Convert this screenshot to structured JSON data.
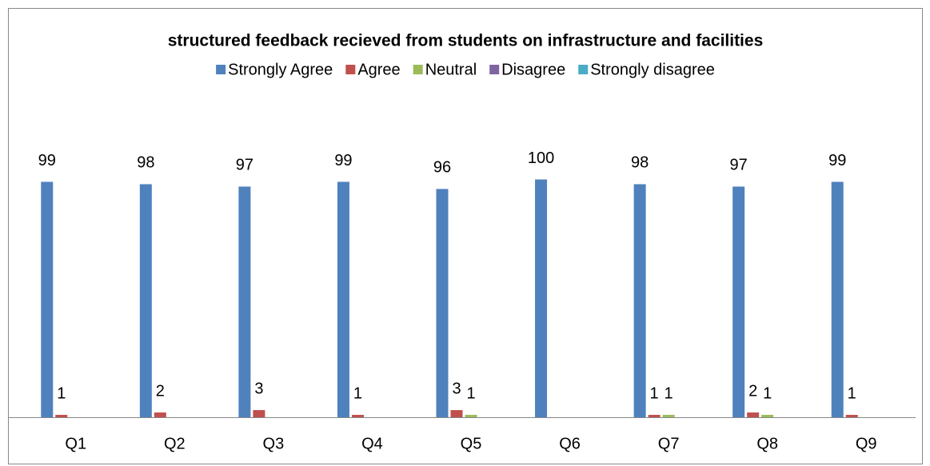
{
  "chart_data": {
    "type": "bar",
    "title": "structured feedback recieved from students on infrastructure and facilities",
    "categories": [
      "Q1",
      "Q2",
      "Q3",
      "Q4",
      "Q5",
      "Q6",
      "Q7",
      "Q8",
      "Q9"
    ],
    "series": [
      {
        "name": "Strongly Agree",
        "color": "#4f81bd",
        "values": [
          99,
          98,
          97,
          99,
          96,
          100,
          98,
          97,
          99
        ]
      },
      {
        "name": "Agree",
        "color": "#c0504d",
        "values": [
          1,
          2,
          3,
          1,
          3,
          0,
          1,
          2,
          1
        ],
        "value_labels": [
          1,
          2,
          3,
          1,
          3,
          null,
          1,
          2,
          1
        ]
      },
      {
        "name": "Neutral",
        "color": "#9bbb59",
        "values": [
          0,
          0,
          0,
          0,
          1,
          0,
          1,
          1,
          0
        ],
        "value_labels": [
          null,
          null,
          null,
          null,
          1,
          null,
          1,
          1,
          null
        ]
      },
      {
        "name": "Disagree",
        "color": "#8064a2",
        "values": [
          0,
          0,
          0,
          0,
          0,
          0,
          0,
          0,
          0
        ],
        "value_labels": [
          null,
          null,
          null,
          null,
          null,
          null,
          null,
          null,
          null
        ]
      },
      {
        "name": "Strongly disagree",
        "color": "#4bacc6",
        "values": [
          0,
          0,
          0,
          0,
          0,
          0,
          0,
          0,
          0
        ],
        "value_labels": [
          null,
          null,
          null,
          null,
          null,
          null,
          null,
          null,
          null
        ]
      }
    ],
    "ylim": [
      0,
      120
    ],
    "legend": "top"
  }
}
